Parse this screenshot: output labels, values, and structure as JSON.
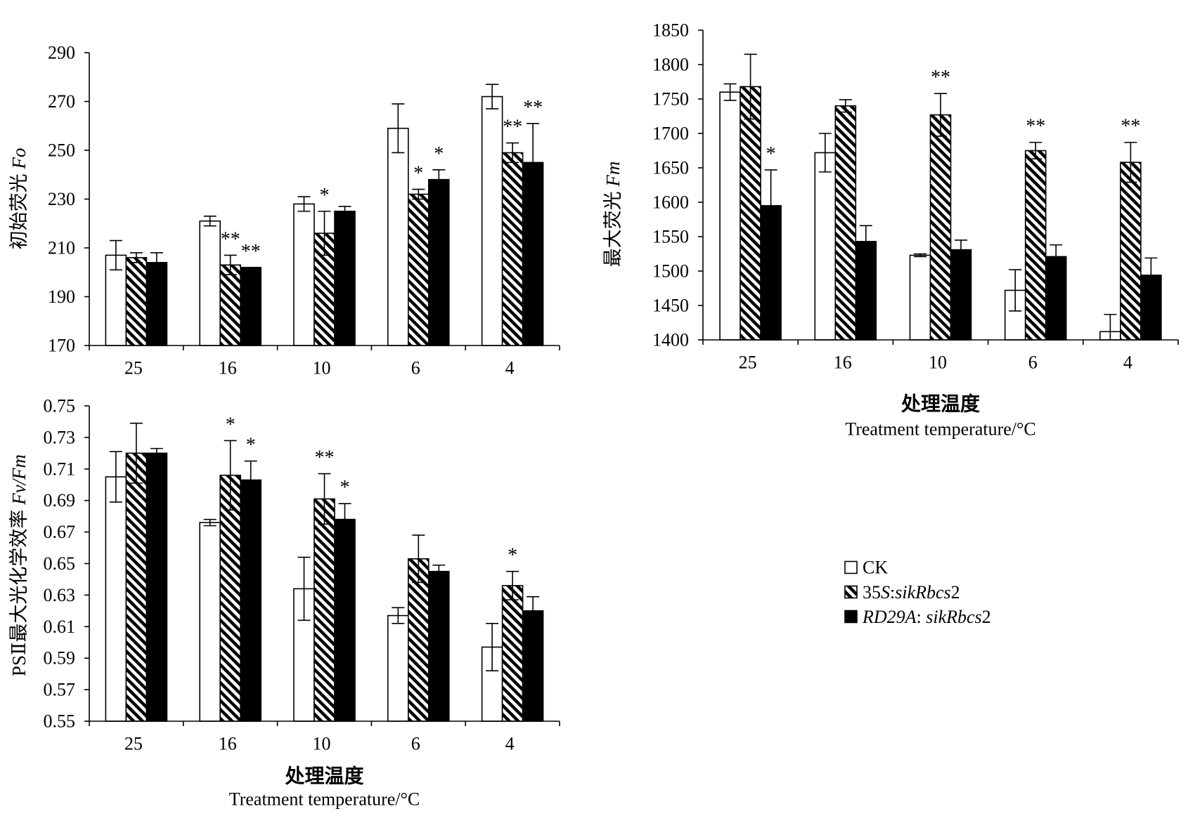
{
  "legend": {
    "entries": [
      {
        "label": "CK",
        "fill": "#ffffff"
      },
      {
        "label": "35S:sikRbcs2",
        "fill": "diagonal-hatch"
      },
      {
        "label": "RD29A: sikRbcs2",
        "fill": "#000000"
      }
    ]
  },
  "chart_data": [
    {
      "type": "bar",
      "ylabel": "初始荧光 Fo",
      "categories": [
        "25",
        "16",
        "10",
        "6",
        "4"
      ],
      "ylim": [
        170,
        290
      ],
      "yticks": [
        "170",
        "190",
        "210",
        "230",
        "250",
        "270",
        "290"
      ],
      "grid": false,
      "series": [
        {
          "values": [
            207,
            221,
            228,
            259,
            272
          ],
          "errors": [
            6,
            2,
            3,
            10,
            5
          ],
          "marks": [
            "",
            "",
            "",
            "",
            ""
          ]
        },
        {
          "values": [
            206,
            203,
            216,
            232,
            249
          ],
          "errors": [
            2,
            4,
            9,
            2,
            4
          ],
          "marks": [
            "",
            "**",
            "*",
            "*",
            "**"
          ]
        },
        {
          "values": [
            204,
            202,
            225,
            238,
            245
          ],
          "errors": [
            4,
            0,
            2,
            4,
            16
          ],
          "marks": [
            "",
            "**",
            "",
            "*",
            "**"
          ]
        }
      ]
    },
    {
      "type": "bar",
      "ylabel": "最大荧光 Fm",
      "xlabel": "处理温度",
      "xlabel_en": "Treatment temperature/°C",
      "categories": [
        "25",
        "16",
        "10",
        "6",
        "4"
      ],
      "ylim": [
        1400,
        1850
      ],
      "yticks": [
        "1400",
        "1450",
        "1500",
        "1550",
        "1600",
        "1650",
        "1700",
        "1750",
        "1800",
        "1850"
      ],
      "grid": false,
      "series": [
        {
          "values": [
            1760,
            1672,
            1523,
            1472,
            1412
          ],
          "errors": [
            12,
            28,
            2,
            30,
            25
          ],
          "marks": [
            "",
            "",
            "",
            "",
            ""
          ]
        },
        {
          "values": [
            1768,
            1740,
            1727,
            1675,
            1658
          ],
          "errors": [
            47,
            9,
            31,
            12,
            29
          ],
          "marks": [
            "",
            "",
            "**",
            "**",
            "**"
          ]
        },
        {
          "values": [
            1595,
            1543,
            1531,
            1521,
            1494
          ],
          "errors": [
            52,
            23,
            14,
            17,
            25
          ],
          "marks": [
            "*",
            "",
            "",
            "",
            ""
          ]
        }
      ]
    },
    {
      "type": "bar",
      "ylabel": "PSⅡ最大光化学效率 Fv/Fm",
      "xlabel": "处理温度",
      "xlabel_en": "Treatment temperature/°C",
      "categories": [
        "25",
        "16",
        "10",
        "6",
        "4"
      ],
      "ylim": [
        0.55,
        0.75
      ],
      "yticks": [
        "0.55",
        "0.57",
        "0.59",
        "0.61",
        "0.63",
        "0.65",
        "0.67",
        "0.69",
        "0.71",
        "0.73",
        "0.75"
      ],
      "grid": false,
      "series": [
        {
          "values": [
            0.705,
            0.676,
            0.634,
            0.617,
            0.597
          ],
          "errors": [
            0.016,
            0.002,
            0.02,
            0.005,
            0.015
          ],
          "marks": [
            "",
            "",
            "",
            "",
            ""
          ]
        },
        {
          "values": [
            0.72,
            0.706,
            0.691,
            0.653,
            0.636
          ],
          "errors": [
            0.019,
            0.022,
            0.016,
            0.015,
            0.009
          ],
          "marks": [
            "",
            "*",
            "**",
            "",
            "*"
          ]
        },
        {
          "values": [
            0.72,
            0.703,
            0.678,
            0.645,
            0.62
          ],
          "errors": [
            0.003,
            0.012,
            0.01,
            0.004,
            0.009
          ],
          "marks": [
            "",
            "*",
            "*",
            "",
            ""
          ]
        }
      ]
    }
  ]
}
